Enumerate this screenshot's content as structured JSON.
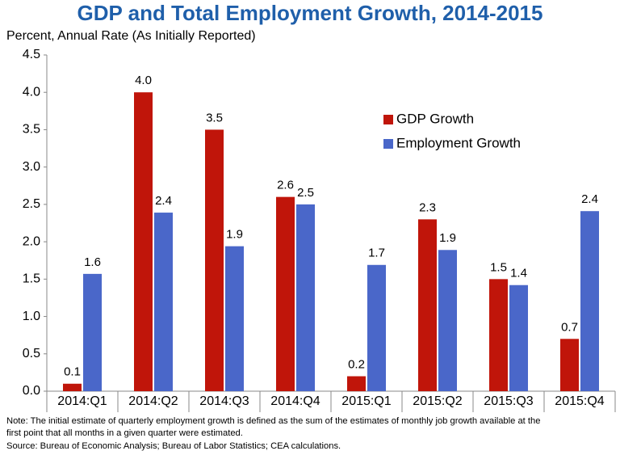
{
  "chart_data": {
    "type": "bar",
    "title": "GDP and Total Employment Growth, 2014-2015",
    "subtitle": "Percent, Annual Rate (As Initially Reported)",
    "categories": [
      "2014:Q1",
      "2014:Q2",
      "2014:Q3",
      "2014:Q4",
      "2015:Q1",
      "2015:Q2",
      "2015:Q3",
      "2015:Q4"
    ],
    "series": [
      {
        "name": "GDP Growth",
        "color": "#c0150a",
        "values": [
          0.1,
          4.0,
          3.5,
          2.6,
          0.2,
          2.3,
          1.5,
          0.7
        ],
        "value_labels": [
          "0.1",
          "4.0",
          "3.5",
          "2.6",
          "0.2",
          "2.3",
          "1.5",
          "0.7"
        ]
      },
      {
        "name": "Employment Growth",
        "color": "#4a67c9",
        "values": [
          1.57,
          2.39,
          1.94,
          2.5,
          1.69,
          1.89,
          1.42,
          2.41
        ],
        "value_labels": [
          "1.6",
          "2.4",
          "1.9",
          "2.5",
          "1.7",
          "1.9",
          "1.4",
          "2.4"
        ]
      }
    ],
    "ylim": [
      0,
      4.5
    ],
    "yticks": [
      {
        "value": 0,
        "label": "0.0"
      },
      0.5,
      {
        "value": 1,
        "label": "1.0"
      },
      1.5,
      {
        "value": 2,
        "label": "2.0"
      },
      2.5,
      {
        "value": 3,
        "label": "3.0"
      },
      3.5,
      {
        "value": 4,
        "label": "4.0"
      },
      4.5
    ],
    "grid": false,
    "legend": "upper right",
    "note": [
      "Note: The initial estimate of quarterly employment growth is defined as the sum of the estimates of monthly job growth available at the",
      "first point that all months in a given quarter were estimated."
    ],
    "source": "Source: Bureau of Economic Analysis; Bureau of Labor Statistics; CEA calculations."
  }
}
